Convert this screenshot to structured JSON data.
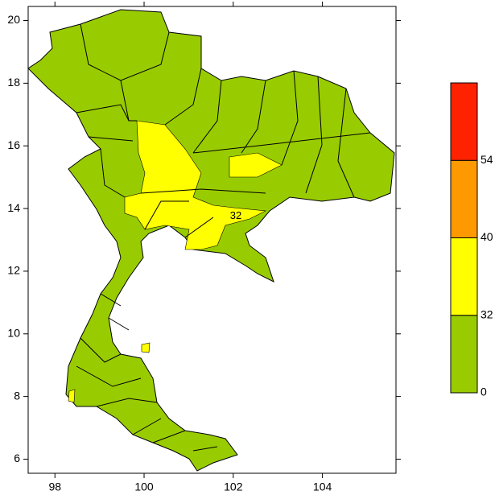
{
  "map": {
    "xlim": [
      97.4,
      105.65
    ],
    "ylim": [
      5.55,
      20.45
    ],
    "xticks": [
      98,
      100,
      102,
      104
    ],
    "yticks": [
      6,
      8,
      10,
      12,
      14,
      16,
      18,
      20
    ],
    "contour_label": "32"
  },
  "colorbar": {
    "levels": [
      0,
      32,
      40,
      54
    ],
    "colors": [
      "#99cc00",
      "#ffff00",
      "#ff9900",
      "#ff2200"
    ]
  }
}
